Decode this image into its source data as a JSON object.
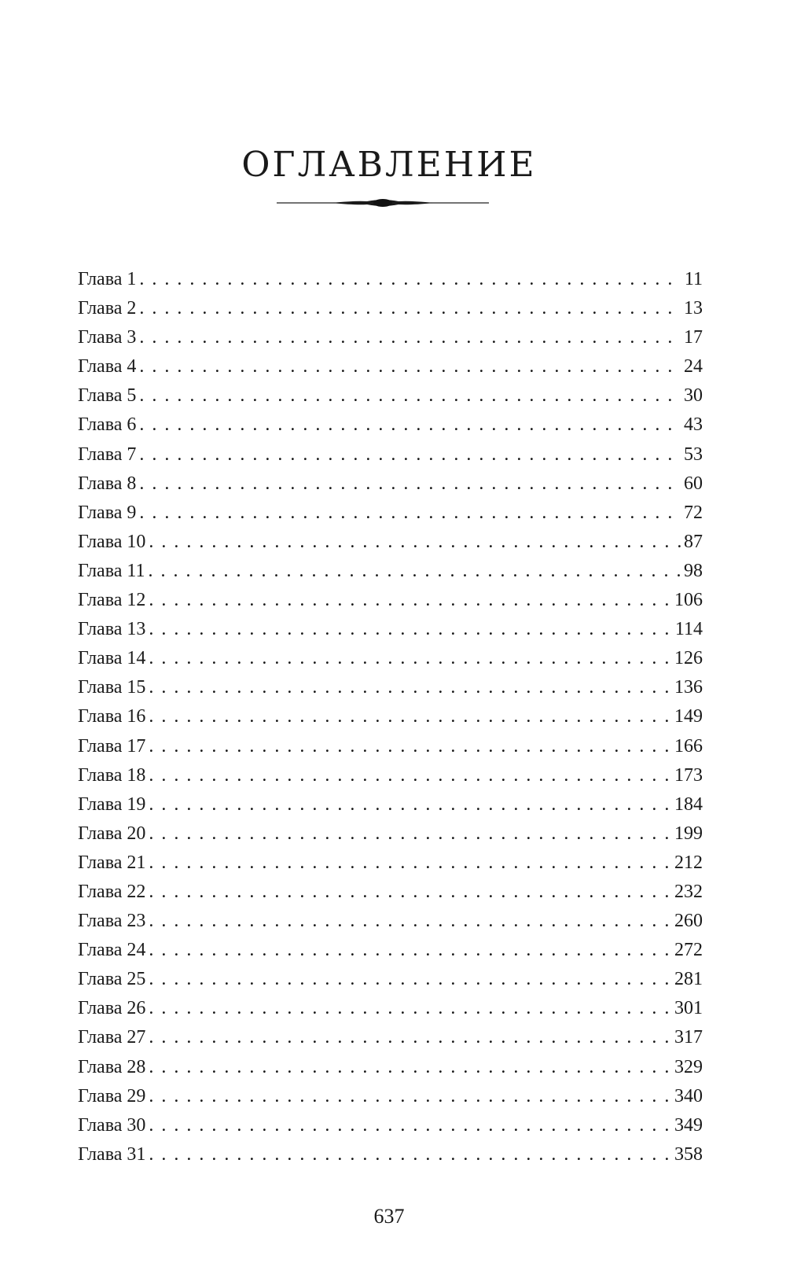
{
  "title": "ОГЛАВЛЕНИЕ",
  "ornament_icon": "decorative-divider",
  "toc": [
    {
      "label": "Глава 1",
      "page": "11"
    },
    {
      "label": "Глава 2",
      "page": "13"
    },
    {
      "label": "Глава 3",
      "page": "17"
    },
    {
      "label": "Глава 4",
      "page": "24"
    },
    {
      "label": "Глава 5",
      "page": "30"
    },
    {
      "label": "Глава 6",
      "page": "43"
    },
    {
      "label": "Глава 7",
      "page": "53"
    },
    {
      "label": "Глава 8",
      "page": "60"
    },
    {
      "label": "Глава 9",
      "page": "72"
    },
    {
      "label": "Глава 10",
      "page": "87"
    },
    {
      "label": "Глава 11",
      "page": "98"
    },
    {
      "label": "Глава 12",
      "page": "106"
    },
    {
      "label": "Глава 13",
      "page": "114"
    },
    {
      "label": "Глава 14",
      "page": "126"
    },
    {
      "label": "Глава 15",
      "page": "136"
    },
    {
      "label": "Глава 16",
      "page": "149"
    },
    {
      "label": "Глава 17",
      "page": "166"
    },
    {
      "label": "Глава 18",
      "page": "173"
    },
    {
      "label": "Глава 19",
      "page": "184"
    },
    {
      "label": "Глава 20",
      "page": "199"
    },
    {
      "label": "Глава 21",
      "page": "212"
    },
    {
      "label": "Глава 22",
      "page": "232"
    },
    {
      "label": "Глава 23",
      "page": "260"
    },
    {
      "label": "Глава 24",
      "page": "272"
    },
    {
      "label": "Глава 25",
      "page": "281"
    },
    {
      "label": "Глава 26",
      "page": "301"
    },
    {
      "label": "Глава 27",
      "page": "317"
    },
    {
      "label": "Глава 28",
      "page": "329"
    },
    {
      "label": "Глава 29",
      "page": "340"
    },
    {
      "label": "Глава 30",
      "page": "349"
    },
    {
      "label": "Глава 31",
      "page": "358"
    }
  ],
  "page_number": "637"
}
